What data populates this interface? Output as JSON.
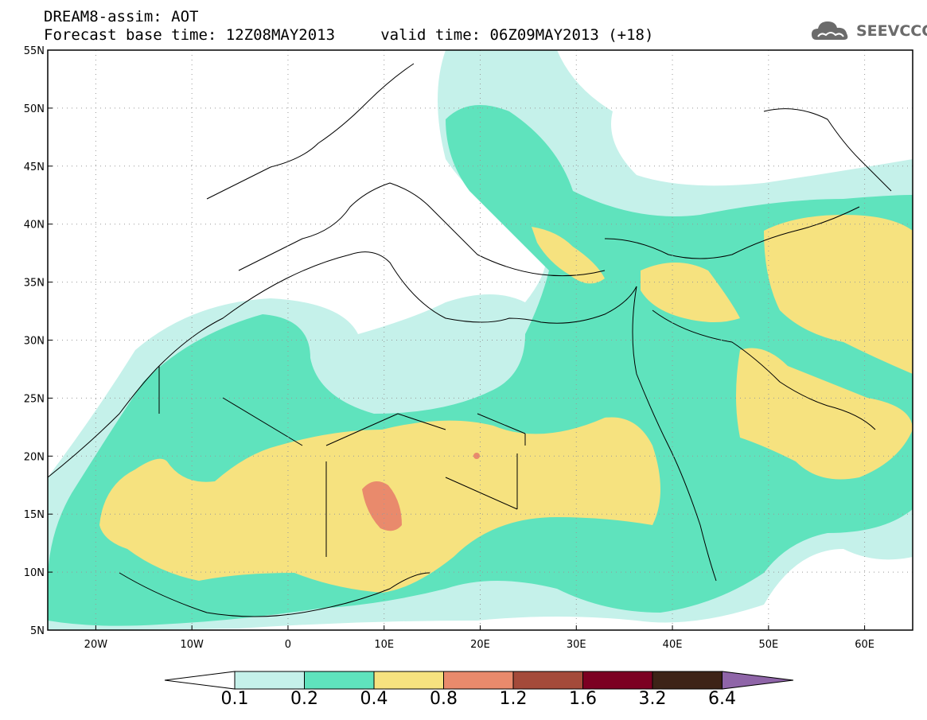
{
  "header": {
    "line1": "DREAM8-assim: AOT",
    "line2": "Forecast base time: 12Z08MAY2013     valid time: 06Z09MAY2013 (+18)"
  },
  "logo": {
    "text": "SEEVCCC",
    "icon": "cloud-icon"
  },
  "map": {
    "lon_range": [
      -25,
      65
    ],
    "lat_range": [
      5,
      55
    ],
    "lat_ticks": [
      "5N",
      "10N",
      "15N",
      "20N",
      "25N",
      "30N",
      "35N",
      "40N",
      "45N",
      "50N",
      "55N"
    ],
    "lon_ticks": [
      "20W",
      "10W",
      "0",
      "10E",
      "20E",
      "30E",
      "40E",
      "50E",
      "60E"
    ],
    "grid": true
  },
  "colorbar": {
    "labels": [
      "0.1",
      "0.2",
      "0.4",
      "0.8",
      "1.2",
      "1.6",
      "3.2",
      "6.4"
    ],
    "colors": [
      "#ffffff",
      "#c5f1ea",
      "#5fe3bd",
      "#f6e27f",
      "#e98a6c",
      "#a44a3a",
      "#7c0022",
      "#3d2317",
      "#8f65a8"
    ]
  }
}
